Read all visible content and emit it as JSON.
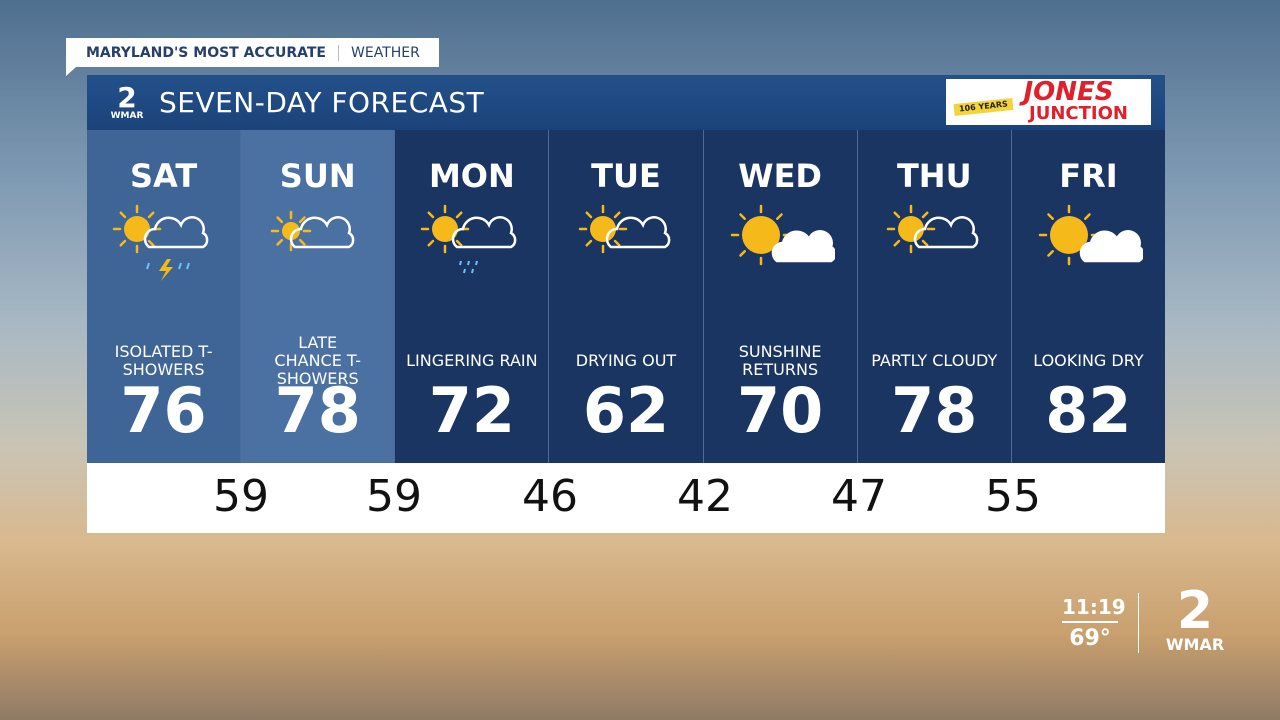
{
  "banner": {
    "brand": "MARYLAND'S MOST ACCURATE",
    "section": "WEATHER"
  },
  "header": {
    "logo_number": "2",
    "logo_text": "WMAR",
    "title": "SEVEN-DAY FORECAST",
    "sponsor": {
      "name_top": "JONES",
      "name_bottom": "JUNCTION",
      "tagline": "106 YEARS"
    }
  },
  "days": [
    {
      "name": "SAT",
      "condition": "ISOLATED T-SHOWERS",
      "high": "76",
      "icon": "sun-cloud-thunderstorm-icon"
    },
    {
      "name": "SUN",
      "condition": "LATE CHANCE T-SHOWERS",
      "high": "78",
      "icon": "sun-cloud-icon"
    },
    {
      "name": "MON",
      "condition": "LINGERING RAIN",
      "high": "72",
      "icon": "sun-cloud-rain-icon"
    },
    {
      "name": "TUE",
      "condition": "DRYING OUT",
      "high": "62",
      "icon": "partly-cloudy-icon"
    },
    {
      "name": "WED",
      "condition": "SUNSHINE RETURNS",
      "high": "70",
      "icon": "mostly-sunny-icon"
    },
    {
      "name": "THU",
      "condition": "PARTLY CLOUDY",
      "high": "78",
      "icon": "partly-cloudy-icon"
    },
    {
      "name": "FRI",
      "condition": "LOOKING DRY",
      "high": "82",
      "icon": "mostly-sunny-icon"
    }
  ],
  "lows": [
    "59",
    "59",
    "46",
    "42",
    "47",
    "55"
  ],
  "bug": {
    "time": "11:19",
    "temp": "69°",
    "station_number": "2",
    "station": "WMAR"
  },
  "colors": {
    "header": "#1f4a84",
    "day_dark": "#1b3562",
    "day_light": "#3f6496",
    "sun": "#f5b91a"
  }
}
